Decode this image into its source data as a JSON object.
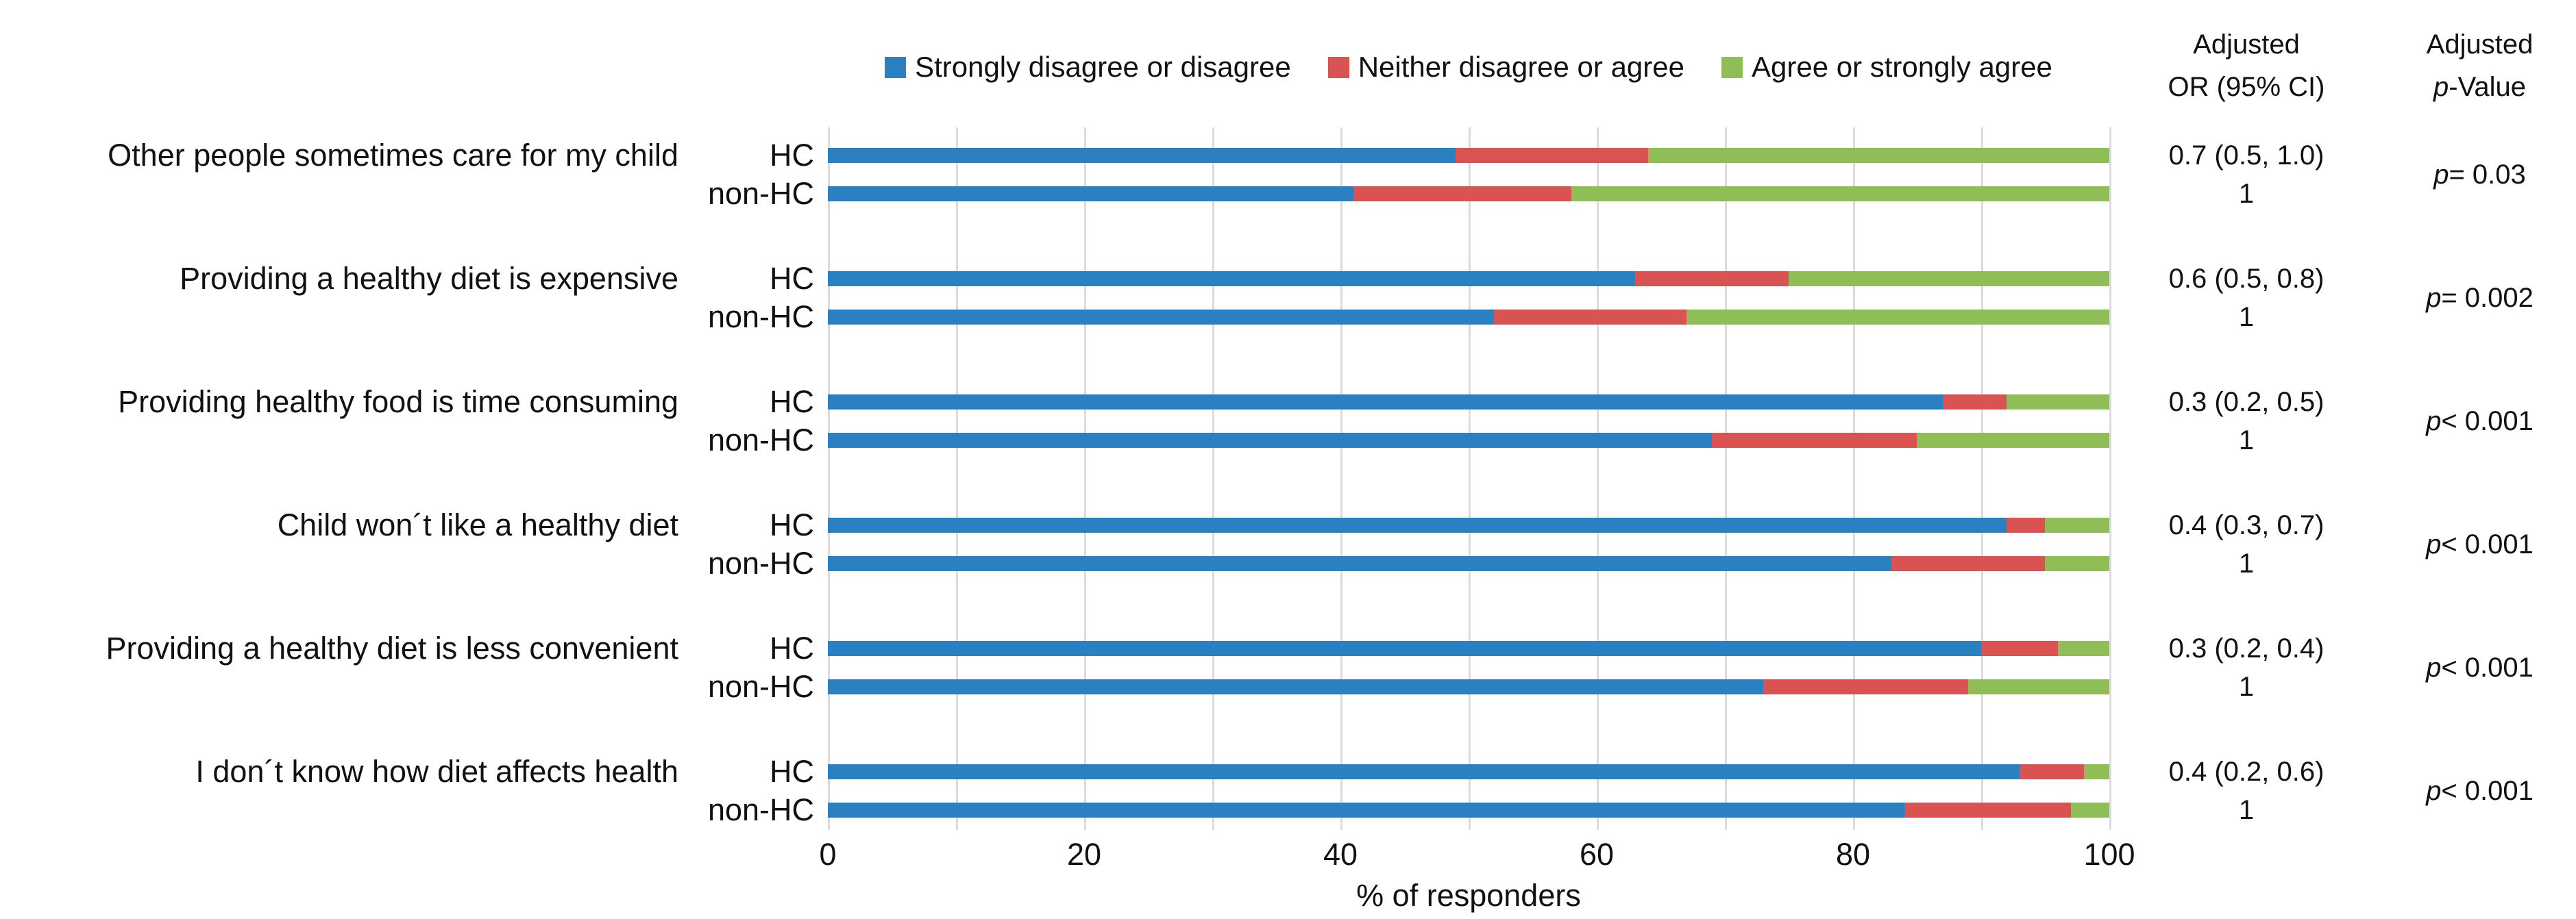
{
  "chart_data": {
    "type": "bar",
    "subtype": "horizontal-stacked-100pct-grouped",
    "x_axis": {
      "title": "% of responders",
      "ticks": [
        "0",
        "20",
        "40",
        "60",
        "80",
        "100"
      ],
      "range": [
        0,
        100
      ],
      "gridline_step": 10
    },
    "colors": {
      "disagree": "#2a80c0",
      "neither": "#d95353",
      "agree": "#8ebe55",
      "gridline": "#dbdbdb"
    },
    "legend": [
      {
        "label": "Strongly disagree  or disagree",
        "color": "#2a80c0"
      },
      {
        "label": "Neither disagree or agree",
        "color": "#d95353"
      },
      {
        "label": "Agree or strongly agree",
        "color": "#8ebe55"
      }
    ],
    "or_header_line1": "Adjusted",
    "or_header_line2": "OR (95% CI)",
    "p_header_line1": "Adjusted",
    "p_symbol": "p",
    "p_header_line2_rest": "-Value",
    "groups": [
      {
        "label": "Other people sometimes care for my child",
        "hc": {
          "name": "HC",
          "values": [
            49,
            15,
            36
          ],
          "or": "0.7 (0.5, 1.0)"
        },
        "non_hc": {
          "name": "non-HC",
          "values": [
            41,
            17,
            42
          ],
          "or": "1"
        },
        "p": " = 0.03"
      },
      {
        "label": "Providing a healthy diet is expensive",
        "hc": {
          "name": "HC",
          "values": [
            63,
            12,
            25
          ],
          "or": "0.6 (0.5, 0.8)"
        },
        "non_hc": {
          "name": "non-HC",
          "values": [
            52,
            15,
            33
          ],
          "or": "1"
        },
        "p": " = 0.002"
      },
      {
        "label": "Providing healthy food is time consuming",
        "hc": {
          "name": "HC",
          "values": [
            87,
            5,
            8
          ],
          "or": "0.3 (0.2, 0.5)"
        },
        "non_hc": {
          "name": "non-HC",
          "values": [
            69,
            16,
            15
          ],
          "or": "1"
        },
        "p": " < 0.001"
      },
      {
        "label": "Child won´t like a healthy diet",
        "hc": {
          "name": "HC",
          "values": [
            92,
            3,
            5
          ],
          "or": "0.4 (0.3, 0.7)"
        },
        "non_hc": {
          "name": "non-HC",
          "values": [
            83,
            12,
            5
          ],
          "or": "1"
        },
        "p": " < 0.001"
      },
      {
        "label": "Providing a healthy diet is less convenient",
        "hc": {
          "name": "HC",
          "values": [
            90,
            6,
            4
          ],
          "or": "0.3 (0.2, 0.4)"
        },
        "non_hc": {
          "name": "non-HC",
          "values": [
            73,
            16,
            11
          ],
          "or": "1"
        },
        "p": " < 0.001"
      },
      {
        "label": "I don´t know how diet affects health",
        "hc": {
          "name": "HC",
          "values": [
            93,
            5,
            2
          ],
          "or": "0.4 (0.2, 0.6)"
        },
        "non_hc": {
          "name": "non-HC",
          "values": [
            84,
            13,
            3
          ],
          "or": "1"
        },
        "p": " < 0.001"
      }
    ]
  }
}
